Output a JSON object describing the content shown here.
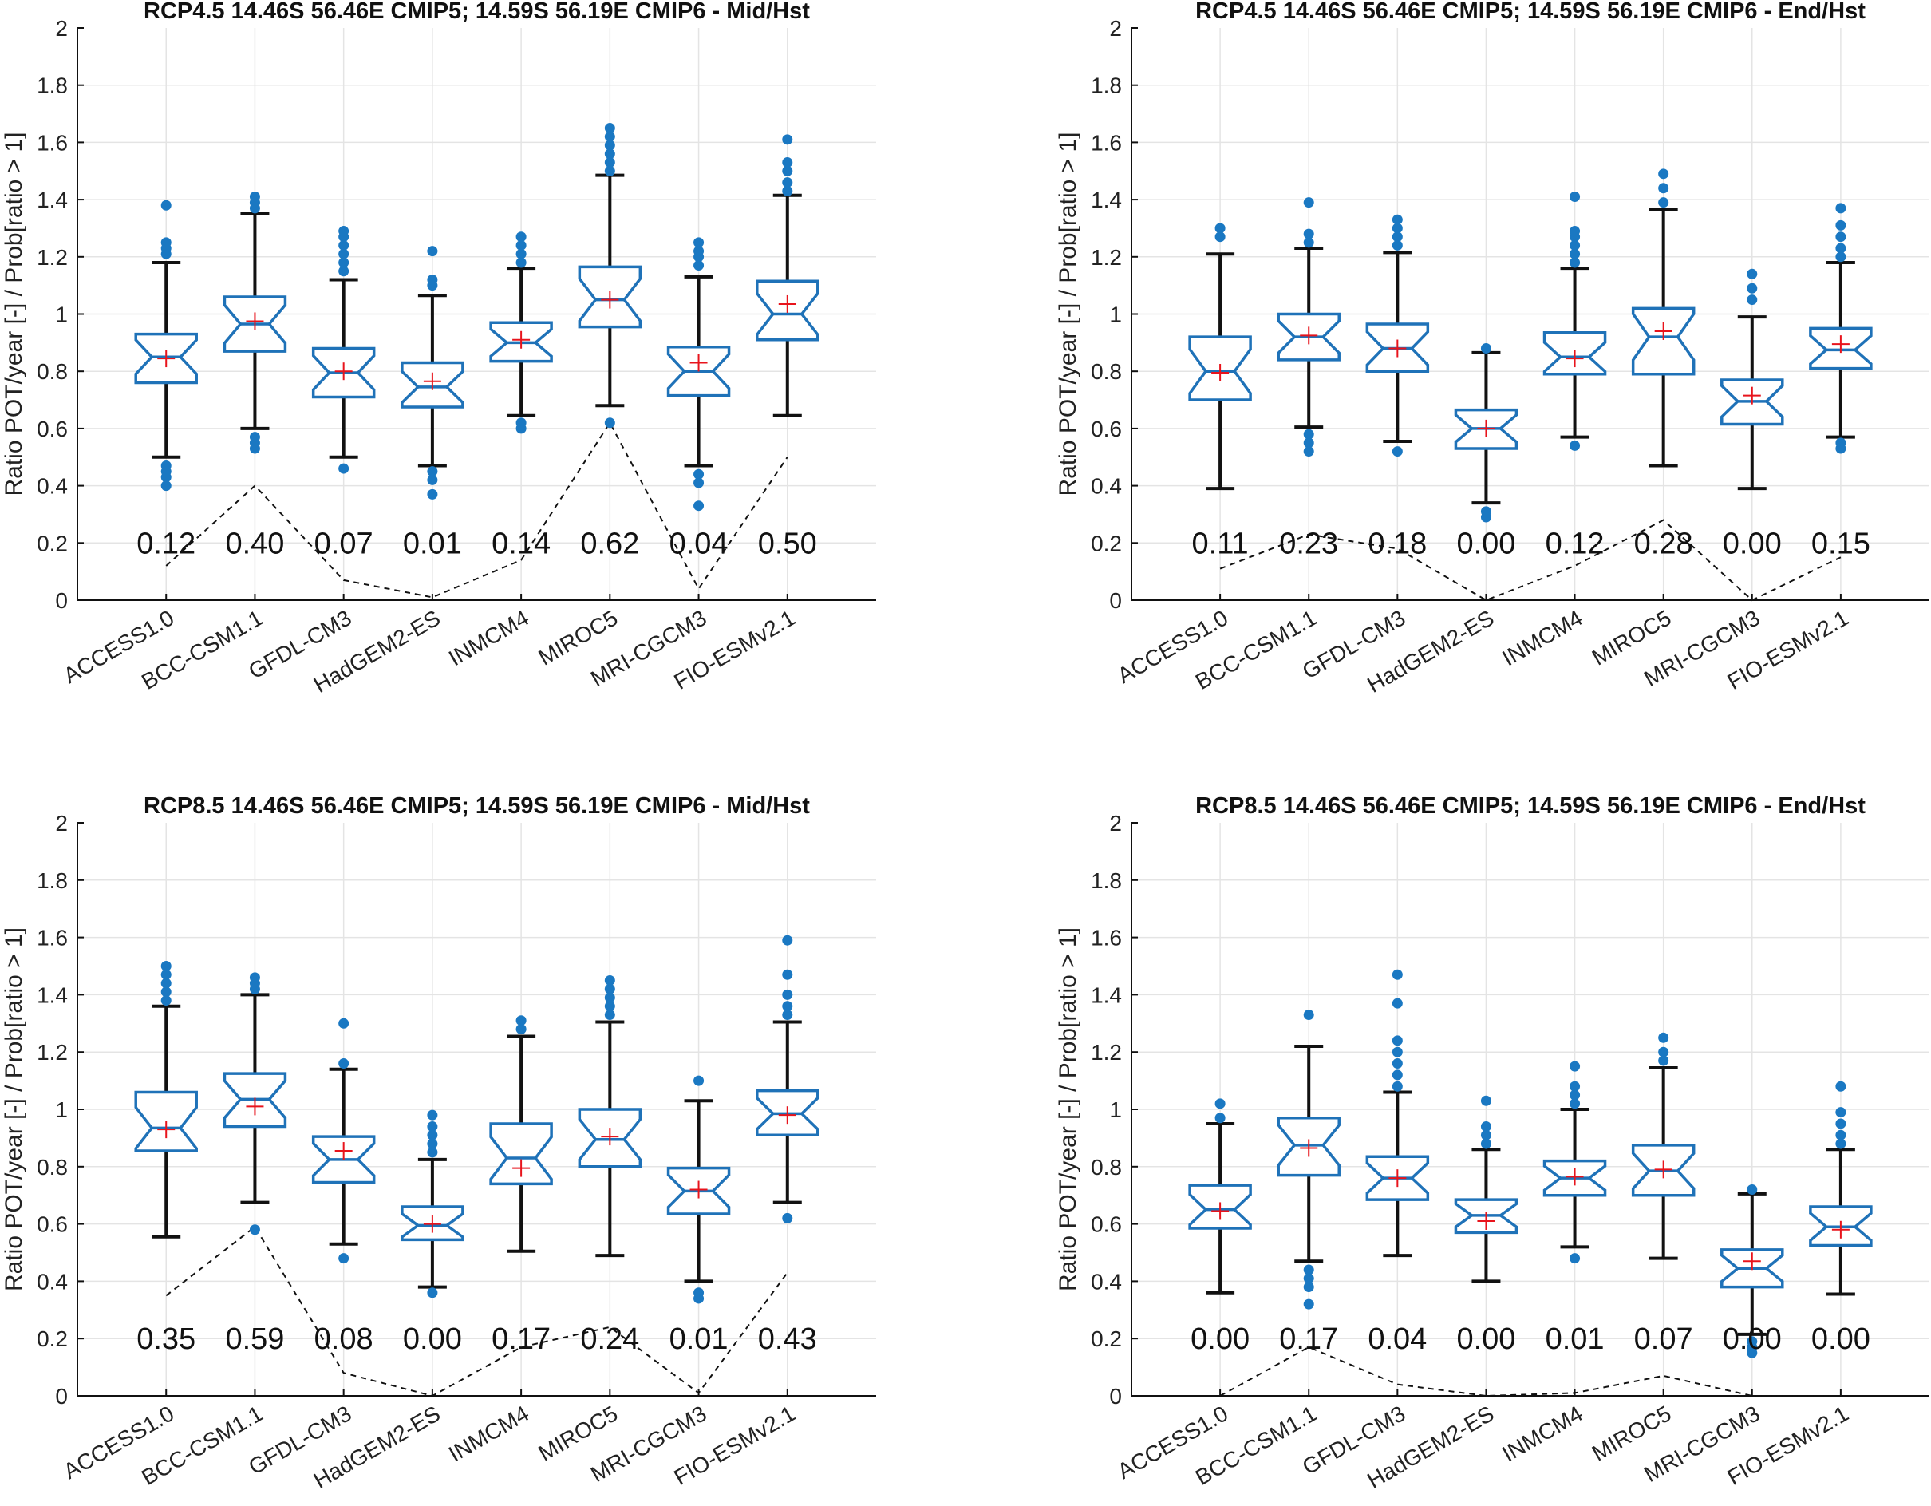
{
  "chart_data": [
    {
      "type": "boxplot",
      "title": "RCP4.5  14.46S  56.46E CMIP5; 14.59S  56.19E CMIP6 - Mid/Hst",
      "ylabel": "Ratio POT/year [-] / Prob[ratio > 1]",
      "ylim": [
        0,
        2
      ],
      "yticks": [
        "0",
        "0.2",
        "0.4",
        "0.6",
        "0.8",
        "1",
        "1.2",
        "1.4",
        "1.6",
        "1.8",
        "2"
      ],
      "categories": [
        "ACCESS1.0",
        "BCC-CSM1.1",
        "GFDL-CM3",
        "HadGEM2-ES",
        "INMCM4",
        "MIROC5",
        "MRI-CGCM3",
        "FIO-ESMv2.1"
      ],
      "boxes": [
        {
          "q1": 0.76,
          "median": 0.85,
          "q3": 0.93,
          "whisker_low": 0.5,
          "whisker_high": 1.18,
          "mean": 0.845,
          "outliers": [
            0.4,
            0.43,
            0.45,
            0.47,
            1.21,
            1.23,
            1.25,
            1.38
          ]
        },
        {
          "q1": 0.87,
          "median": 0.965,
          "q3": 1.06,
          "whisker_low": 0.6,
          "whisker_high": 1.35,
          "mean": 0.975,
          "outliers": [
            0.53,
            0.55,
            0.57,
            1.37,
            1.39,
            1.41
          ]
        },
        {
          "q1": 0.71,
          "median": 0.795,
          "q3": 0.88,
          "whisker_low": 0.5,
          "whisker_high": 1.12,
          "mean": 0.8,
          "outliers": [
            0.46,
            1.15,
            1.18,
            1.21,
            1.24,
            1.27,
            1.29
          ]
        },
        {
          "q1": 0.675,
          "median": 0.745,
          "q3": 0.83,
          "whisker_low": 0.47,
          "whisker_high": 1.065,
          "mean": 0.765,
          "outliers": [
            0.37,
            0.42,
            0.45,
            1.1,
            1.12,
            1.22
          ]
        },
        {
          "q1": 0.835,
          "median": 0.9,
          "q3": 0.97,
          "whisker_low": 0.645,
          "whisker_high": 1.16,
          "mean": 0.91,
          "outliers": [
            0.6,
            0.62,
            1.18,
            1.21,
            1.24,
            1.27
          ]
        },
        {
          "q1": 0.955,
          "median": 1.05,
          "q3": 1.165,
          "whisker_low": 0.68,
          "whisker_high": 1.485,
          "mean": 1.05,
          "outliers": [
            0.62,
            1.5,
            1.53,
            1.56,
            1.59,
            1.62,
            1.65
          ]
        },
        {
          "q1": 0.715,
          "median": 0.8,
          "q3": 0.885,
          "whisker_low": 0.47,
          "whisker_high": 1.13,
          "mean": 0.83,
          "outliers": [
            0.33,
            0.41,
            0.44,
            1.17,
            1.2,
            1.22,
            1.25
          ]
        },
        {
          "q1": 0.91,
          "median": 1.0,
          "q3": 1.115,
          "whisker_low": 0.645,
          "whisker_high": 1.415,
          "mean": 1.035,
          "outliers": [
            1.43,
            1.46,
            1.5,
            1.53,
            1.61
          ]
        }
      ],
      "prob_labels": [
        "0.12",
        "0.40",
        "0.07",
        "0.01",
        "0.14",
        "0.62",
        "0.04",
        "0.50"
      ],
      "prob_values": [
        0.12,
        0.4,
        0.07,
        0.01,
        0.14,
        0.62,
        0.04,
        0.5
      ]
    },
    {
      "type": "boxplot",
      "title": "RCP4.5  14.46S  56.46E CMIP5; 14.59S  56.19E CMIP6 - End/Hst",
      "ylabel": "Ratio POT/year [-] / Prob[ratio > 1]",
      "ylim": [
        0,
        2
      ],
      "yticks": [
        "0",
        "0.2",
        "0.4",
        "0.6",
        "0.8",
        "1",
        "1.2",
        "1.4",
        "1.6",
        "1.8",
        "2"
      ],
      "categories": [
        "ACCESS1.0",
        "BCC-CSM1.1",
        "GFDL-CM3",
        "HadGEM2-ES",
        "INMCM4",
        "MIROC5",
        "MRI-CGCM3",
        "FIO-ESMv2.1"
      ],
      "boxes": [
        {
          "q1": 0.7,
          "median": 0.8,
          "q3": 0.92,
          "whisker_low": 0.39,
          "whisker_high": 1.21,
          "mean": 0.795,
          "outliers": [
            1.27,
            1.3
          ]
        },
        {
          "q1": 0.84,
          "median": 0.92,
          "q3": 1.0,
          "whisker_low": 0.605,
          "whisker_high": 1.23,
          "mean": 0.925,
          "outliers": [
            0.52,
            0.55,
            0.58,
            1.25,
            1.28,
            1.39
          ]
        },
        {
          "q1": 0.8,
          "median": 0.88,
          "q3": 0.965,
          "whisker_low": 0.555,
          "whisker_high": 1.215,
          "mean": 0.88,
          "outliers": [
            0.52,
            1.24,
            1.27,
            1.3,
            1.33
          ]
        },
        {
          "q1": 0.53,
          "median": 0.6,
          "q3": 0.665,
          "whisker_low": 0.34,
          "whisker_high": 0.865,
          "mean": 0.6,
          "outliers": [
            0.29,
            0.31,
            0.88
          ]
        },
        {
          "q1": 0.79,
          "median": 0.85,
          "q3": 0.935,
          "whisker_low": 0.57,
          "whisker_high": 1.16,
          "mean": 0.845,
          "outliers": [
            0.54,
            1.18,
            1.21,
            1.24,
            1.27,
            1.29,
            1.41
          ]
        },
        {
          "q1": 0.79,
          "median": 0.92,
          "q3": 1.02,
          "whisker_low": 0.47,
          "whisker_high": 1.365,
          "mean": 0.94,
          "outliers": [
            1.39,
            1.44,
            1.49
          ]
        },
        {
          "q1": 0.615,
          "median": 0.695,
          "q3": 0.77,
          "whisker_low": 0.39,
          "whisker_high": 0.99,
          "mean": 0.715,
          "outliers": [
            1.05,
            1.09,
            1.14
          ]
        },
        {
          "q1": 0.81,
          "median": 0.875,
          "q3": 0.95,
          "whisker_low": 0.57,
          "whisker_high": 1.18,
          "mean": 0.895,
          "outliers": [
            0.53,
            0.55,
            1.2,
            1.23,
            1.27,
            1.31,
            1.37
          ]
        }
      ],
      "prob_labels": [
        "0.11",
        "0.23",
        "0.18",
        "0.00",
        "0.12",
        "0.28",
        "0.00",
        "0.15"
      ],
      "prob_values": [
        0.11,
        0.23,
        0.18,
        0.0,
        0.12,
        0.28,
        0.0,
        0.15
      ]
    },
    {
      "type": "boxplot",
      "title": "RCP8.5  14.46S  56.46E CMIP5; 14.59S  56.19E CMIP6 - Mid/Hst",
      "ylabel": "Ratio POT/year [-] / Prob[ratio > 1]",
      "ylim": [
        0,
        2
      ],
      "yticks": [
        "0",
        "0.2",
        "0.4",
        "0.6",
        "0.8",
        "1",
        "1.2",
        "1.4",
        "1.6",
        "1.8",
        "2"
      ],
      "categories": [
        "ACCESS1.0",
        "BCC-CSM1.1",
        "GFDL-CM3",
        "HadGEM2-ES",
        "INMCM4",
        "MIROC5",
        "MRI-CGCM3",
        "FIO-ESMv2.1"
      ],
      "boxes": [
        {
          "q1": 0.855,
          "median": 0.935,
          "q3": 1.06,
          "whisker_low": 0.555,
          "whisker_high": 1.36,
          "mean": 0.93,
          "outliers": [
            1.38,
            1.41,
            1.44,
            1.47,
            1.5
          ]
        },
        {
          "q1": 0.94,
          "median": 1.035,
          "q3": 1.125,
          "whisker_low": 0.675,
          "whisker_high": 1.4,
          "mean": 1.01,
          "outliers": [
            0.58,
            1.42,
            1.44,
            1.46
          ]
        },
        {
          "q1": 0.745,
          "median": 0.825,
          "q3": 0.905,
          "whisker_low": 0.53,
          "whisker_high": 1.14,
          "mean": 0.855,
          "outliers": [
            0.48,
            1.16,
            1.3
          ]
        },
        {
          "q1": 0.545,
          "median": 0.595,
          "q3": 0.66,
          "whisker_low": 0.38,
          "whisker_high": 0.825,
          "mean": 0.6,
          "outliers": [
            0.36,
            0.85,
            0.88,
            0.91,
            0.94,
            0.98
          ]
        },
        {
          "q1": 0.74,
          "median": 0.83,
          "q3": 0.95,
          "whisker_low": 0.505,
          "whisker_high": 1.255,
          "mean": 0.795,
          "outliers": [
            1.28,
            1.31
          ]
        },
        {
          "q1": 0.8,
          "median": 0.895,
          "q3": 1.0,
          "whisker_low": 0.49,
          "whisker_high": 1.305,
          "mean": 0.905,
          "outliers": [
            1.33,
            1.36,
            1.39,
            1.42,
            1.45
          ]
        },
        {
          "q1": 0.635,
          "median": 0.715,
          "q3": 0.795,
          "whisker_low": 0.4,
          "whisker_high": 1.03,
          "mean": 0.72,
          "outliers": [
            0.34,
            0.36,
            1.1
          ]
        },
        {
          "q1": 0.91,
          "median": 0.985,
          "q3": 1.065,
          "whisker_low": 0.675,
          "whisker_high": 1.305,
          "mean": 0.98,
          "outliers": [
            0.62,
            1.33,
            1.36,
            1.4,
            1.47,
            1.59
          ]
        }
      ],
      "prob_labels": [
        "0.35",
        "0.59",
        "0.08",
        "0.00",
        "0.17",
        "0.24",
        "0.01",
        "0.43"
      ],
      "prob_values": [
        0.35,
        0.59,
        0.08,
        0.0,
        0.17,
        0.24,
        0.01,
        0.43
      ]
    },
    {
      "type": "boxplot",
      "title": "RCP8.5  14.46S  56.46E CMIP5; 14.59S  56.19E CMIP6 - End/Hst",
      "ylabel": "Ratio POT/year [-] / Prob[ratio > 1]",
      "ylim": [
        0,
        2
      ],
      "yticks": [
        "0",
        "0.2",
        "0.4",
        "0.6",
        "0.8",
        "1",
        "1.2",
        "1.4",
        "1.6",
        "1.8",
        "2"
      ],
      "categories": [
        "ACCESS1.0",
        "BCC-CSM1.1",
        "GFDL-CM3",
        "HadGEM2-ES",
        "INMCM4",
        "MIROC5",
        "MRI-CGCM3",
        "FIO-ESMv2.1"
      ],
      "boxes": [
        {
          "q1": 0.585,
          "median": 0.65,
          "q3": 0.735,
          "whisker_low": 0.36,
          "whisker_high": 0.95,
          "mean": 0.645,
          "outliers": [
            0.97,
            1.02
          ]
        },
        {
          "q1": 0.77,
          "median": 0.875,
          "q3": 0.97,
          "whisker_low": 0.47,
          "whisker_high": 1.22,
          "mean": 0.865,
          "outliers": [
            0.32,
            0.38,
            0.41,
            0.44,
            1.33
          ]
        },
        {
          "q1": 0.685,
          "median": 0.76,
          "q3": 0.835,
          "whisker_low": 0.49,
          "whisker_high": 1.06,
          "mean": 0.76,
          "outliers": [
            1.08,
            1.12,
            1.16,
            1.2,
            1.24,
            1.37,
            1.47
          ]
        },
        {
          "q1": 0.57,
          "median": 0.63,
          "q3": 0.685,
          "whisker_low": 0.4,
          "whisker_high": 0.86,
          "mean": 0.61,
          "outliers": [
            0.88,
            0.91,
            0.94,
            1.03
          ]
        },
        {
          "q1": 0.7,
          "median": 0.76,
          "q3": 0.82,
          "whisker_low": 0.52,
          "whisker_high": 1.0,
          "mean": 0.765,
          "outliers": [
            0.48,
            1.02,
            1.05,
            1.08,
            1.15
          ]
        },
        {
          "q1": 0.7,
          "median": 0.785,
          "q3": 0.875,
          "whisker_low": 0.48,
          "whisker_high": 1.145,
          "mean": 0.79,
          "outliers": [
            1.17,
            1.2,
            1.25
          ]
        },
        {
          "q1": 0.38,
          "median": 0.445,
          "q3": 0.51,
          "whisker_low": 0.215,
          "whisker_high": 0.705,
          "mean": 0.47,
          "outliers": [
            0.15,
            0.17,
            0.19,
            0.72
          ]
        },
        {
          "q1": 0.525,
          "median": 0.59,
          "q3": 0.66,
          "whisker_low": 0.355,
          "whisker_high": 0.86,
          "mean": 0.58,
          "outliers": [
            0.88,
            0.91,
            0.95,
            0.99,
            1.08
          ]
        }
      ],
      "prob_labels": [
        "0.00",
        "0.17",
        "0.04",
        "0.00",
        "0.01",
        "0.07",
        "0.00",
        "0.00"
      ],
      "prob_values": [
        0.0,
        0.17,
        0.04,
        0.0,
        0.01,
        0.07,
        0.0,
        0.0
      ]
    }
  ]
}
